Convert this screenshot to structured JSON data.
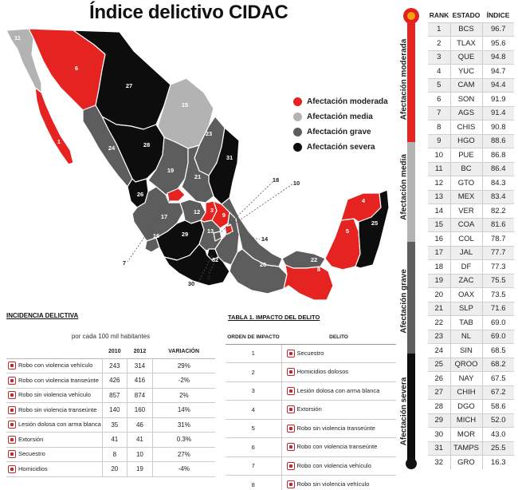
{
  "title": "Índice delictivo CIDAC",
  "colors": {
    "moderada": "#e52421",
    "media": "#b3b3b3",
    "grave": "#5d5d5d",
    "severa": "#0d0d0d",
    "accent": "#c0282d"
  },
  "legend": [
    {
      "label": "Afectación moderada",
      "color": "#e52421"
    },
    {
      "label": "Afectación media",
      "color": "#b3b3b3"
    },
    {
      "label": "Afectación grave",
      "color": "#5d5d5d"
    },
    {
      "label": "Afectación severa",
      "color": "#0d0d0d"
    }
  ],
  "map_labels": [
    "11",
    "6",
    "27",
    "1",
    "15",
    "24",
    "28",
    "23",
    "31",
    "19",
    "21",
    "26",
    "18",
    "10",
    "9",
    "12",
    "4",
    "17",
    "3",
    "22",
    "25",
    "7",
    "16",
    "29",
    "13",
    "14",
    "5",
    "32",
    "2",
    "20",
    "8",
    "30"
  ],
  "scale_labels": [
    "Afectación moderada",
    "Afectación media",
    "Afectación grave",
    "Afectación severa"
  ],
  "rank_table": {
    "headers": [
      "RANK",
      "ESTADO",
      "ÍNDICE"
    ],
    "rows": [
      [
        "1",
        "BCS",
        "96.7"
      ],
      [
        "2",
        "TLAX",
        "95.6"
      ],
      [
        "3",
        "QUE",
        "94.8"
      ],
      [
        "4",
        "YUC",
        "94.7"
      ],
      [
        "5",
        "CAM",
        "94.4"
      ],
      [
        "6",
        "SON",
        "91.9"
      ],
      [
        "7",
        "AGS",
        "91.4"
      ],
      [
        "8",
        "CHIS",
        "90.8"
      ],
      [
        "9",
        "HGO",
        "88.6"
      ],
      [
        "10",
        "PUE",
        "86.8"
      ],
      [
        "11",
        "BC",
        "86.4"
      ],
      [
        "12",
        "GTO",
        "84.3"
      ],
      [
        "13",
        "MEX",
        "83.4"
      ],
      [
        "14",
        "VER",
        "82.2"
      ],
      [
        "15",
        "COA",
        "81.6"
      ],
      [
        "16",
        "COL",
        "78.7"
      ],
      [
        "17",
        "JAL",
        "77.7"
      ],
      [
        "18",
        "DF",
        "77.3"
      ],
      [
        "19",
        "ZAC",
        "75.5"
      ],
      [
        "20",
        "OAX",
        "73.5"
      ],
      [
        "21",
        "SLP",
        "71.6"
      ],
      [
        "22",
        "TAB",
        "69.0"
      ],
      [
        "23",
        "NL",
        "69.0"
      ],
      [
        "24",
        "SIN",
        "68.5"
      ],
      [
        "25",
        "QROO",
        "68.2"
      ],
      [
        "26",
        "NAY",
        "67.5"
      ],
      [
        "27",
        "CHIH",
        "67.2"
      ],
      [
        "28",
        "DGO",
        "58.6"
      ],
      [
        "29",
        "MICH",
        "52.0"
      ],
      [
        "30",
        "MOR",
        "43.0"
      ],
      [
        "31",
        "TAMPS",
        "25.5"
      ],
      [
        "32",
        "GRO",
        "16.3"
      ]
    ]
  },
  "incidencia": {
    "title": "INCIDENCIA DELICTIVA",
    "subtitle": "por cada 100 mil habitantes",
    "headers": [
      "",
      "2010",
      "2012",
      "VARIACIÓN"
    ],
    "rows": [
      {
        "name": "Robo con violencia vehículo",
        "icon": "car-icon",
        "v2010": "243",
        "v2012": "314",
        "var": "29%"
      },
      {
        "name": "Robo con violencia transeúnte",
        "icon": "pedestrian-icon",
        "v2010": "426",
        "v2012": "416",
        "var": "-2%"
      },
      {
        "name": "Robo sin violencia vehículo",
        "icon": "car-icon",
        "v2010": "857",
        "v2012": "874",
        "var": "2%"
      },
      {
        "name": "Robo sin violencia transeúnte",
        "icon": "pedestrian-icon",
        "v2010": "140",
        "v2012": "160",
        "var": "14%"
      },
      {
        "name": "Lesión dolosa con arma blanca",
        "icon": "knife-icon",
        "v2010": "35",
        "v2012": "46",
        "var": "31%"
      },
      {
        "name": "Extorsión",
        "icon": "phone-icon",
        "v2010": "41",
        "v2012": "41",
        "var": "0.3%"
      },
      {
        "name": "Secuestro",
        "icon": "person-icon",
        "v2010": "8",
        "v2012": "10",
        "var": "27%"
      },
      {
        "name": "Homicidios",
        "icon": "body-icon",
        "v2010": "20",
        "v2012": "19",
        "var": "-4%"
      }
    ]
  },
  "tabla1": {
    "title": "TABLA 1. IMPACTO DEL DELITO",
    "headers": [
      "ORDEN DE IMPACTO",
      "DELITO"
    ],
    "rows": [
      {
        "orden": "1",
        "delito": "Secuestro",
        "icon": "person-icon"
      },
      {
        "orden": "2",
        "delito": "Homicidios dolosos",
        "icon": "body-icon"
      },
      {
        "orden": "3",
        "delito": "Lesión dolosa con arma blanca",
        "icon": "knife-icon"
      },
      {
        "orden": "4",
        "delito": "Extorsión",
        "icon": "phone-icon"
      },
      {
        "orden": "5",
        "delito": "Robo sin violencia transeúnte",
        "icon": "pedestrian-icon"
      },
      {
        "orden": "6",
        "delito": "Robo con violencia transeúnte",
        "icon": "pedestrian-icon"
      },
      {
        "orden": "7",
        "delito": "Robo con violencia vehículo",
        "icon": "car-icon"
      },
      {
        "orden": "8",
        "delito": "Robo sin violencia vehículo",
        "icon": "car-icon"
      }
    ]
  }
}
